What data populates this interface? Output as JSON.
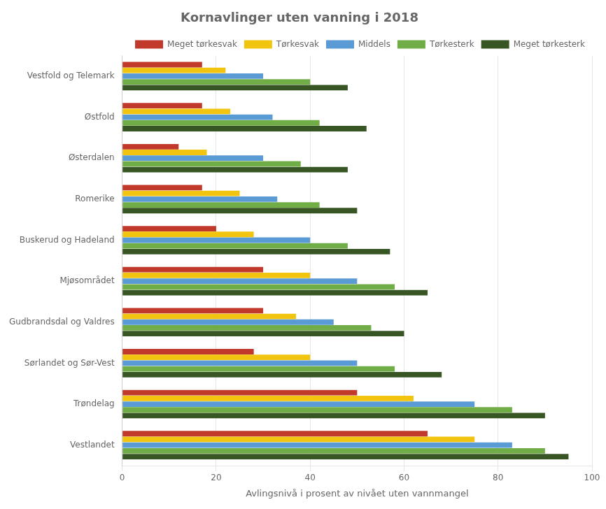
{
  "chart_data": {
    "type": "bar",
    "orientation": "horizontal",
    "title": "Kornavlinger uten vanning i 2018",
    "x_label": "Avlingsnivå i prosent av nivået uten vannmangel",
    "categories": [
      "Vestfold og Telemark",
      "Østfold",
      "Østerdalen",
      "Romerike",
      "Buskerud og Hadeland",
      "Mjøsområdet",
      "Gudbrandsdal og Valdres",
      "Sørlandet og Sør-Vest",
      "Trøndelag",
      "Vestlandet"
    ],
    "series": [
      {
        "name": "Meget tørkesvak",
        "color": "#C0392B",
        "values": [
          17,
          17,
          12,
          17,
          20,
          30,
          30,
          28,
          50,
          65
        ]
      },
      {
        "name": "Tørkesvak",
        "color": "#F1C40F",
        "values": [
          22,
          23,
          18,
          25,
          28,
          40,
          37,
          40,
          62,
          75
        ]
      },
      {
        "name": "Middels",
        "color": "#5B9BD5",
        "values": [
          30,
          32,
          30,
          33,
          40,
          50,
          45,
          50,
          75,
          83
        ]
      },
      {
        "name": "Tørkesterk",
        "color": "#70AD47",
        "values": [
          40,
          42,
          38,
          42,
          48,
          58,
          53,
          58,
          83,
          90
        ]
      },
      {
        "name": "Meget tørkesterk",
        "color": "#375623",
        "values": [
          48,
          52,
          48,
          50,
          57,
          65,
          60,
          68,
          90,
          95
        ]
      }
    ],
    "xlim": [
      0,
      100
    ],
    "xticks": [
      0,
      20,
      40,
      60,
      80,
      100
    ],
    "grid": true,
    "legend": "upper right"
  }
}
